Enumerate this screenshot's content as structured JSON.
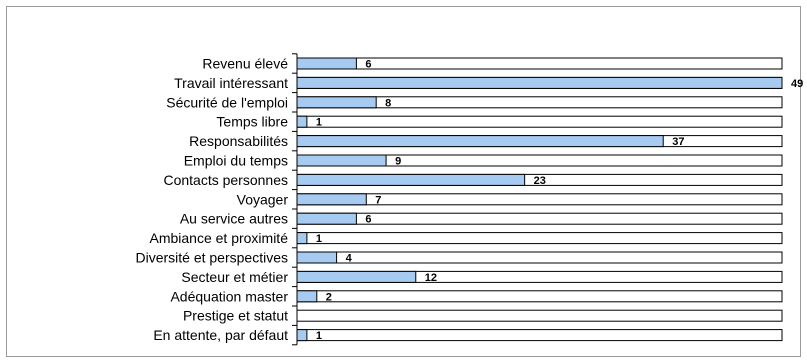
{
  "chart_data": {
    "type": "bar",
    "orientation": "horizontal",
    "categories": [
      "Revenu élevé",
      "Travail intéressant",
      "Sécurité de l'emploi",
      "Temps libre",
      "Responsabilités",
      "Emploi du temps",
      "Contacts personnes",
      "Voyager",
      "Au service autres",
      "Ambiance et proximité",
      "Diversité et perspectives",
      "Secteur et métier",
      "Adéquation master",
      "Prestige et statut",
      "En attente, par défaut"
    ],
    "values": [
      6,
      49,
      8,
      1,
      37,
      9,
      23,
      7,
      6,
      1,
      4,
      12,
      2,
      0,
      1
    ],
    "data_labels": [
      "6",
      "49",
      "8",
      "1",
      "37",
      "9",
      "23",
      "7",
      "6",
      "1",
      "4",
      "12",
      "2",
      "",
      "1"
    ],
    "xlim": [
      0,
      49
    ],
    "title": "",
    "xlabel": "",
    "ylabel": "",
    "grid": false,
    "legend": "none",
    "colors": {
      "bar_fill": "#a6caf0",
      "bar_stroke": "#000000",
      "track_fill": "#ffffff",
      "frame": "#9a9a9a"
    }
  }
}
